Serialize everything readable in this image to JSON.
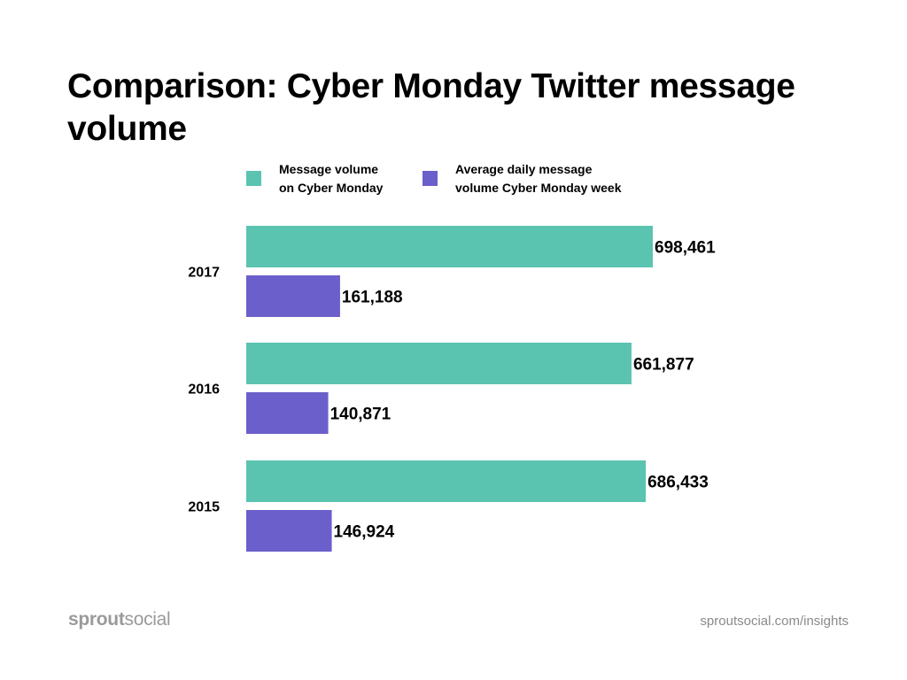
{
  "title": "Comparison: Cyber Monday Twitter message volume",
  "legend": [
    {
      "label": "Message volume\non Cyber Monday",
      "color": "#5bc4b1"
    },
    {
      "label": "Average daily message\nvolume Cyber Monday week",
      "color": "#6b5fcb"
    }
  ],
  "chart_data": {
    "type": "bar",
    "orientation": "horizontal",
    "categories": [
      "2017",
      "2016",
      "2015"
    ],
    "series": [
      {
        "name": "Message volume on Cyber Monday",
        "color": "#5bc4b1",
        "values": [
          698461,
          661877,
          686433
        ],
        "labels": [
          "698,461",
          "661,877",
          "686,433"
        ]
      },
      {
        "name": "Average daily message volume Cyber Monday week",
        "color": "#6b5fcb",
        "values": [
          161188,
          140871,
          146924
        ],
        "labels": [
          "161,188",
          "140,871",
          "146,924"
        ]
      }
    ],
    "xlim": [
      0,
      698461
    ],
    "grid": false,
    "legend_position": "top"
  },
  "footer": {
    "logo_sprout": "sprout",
    "logo_social": "social",
    "url": "sproutsocial.com/insights"
  }
}
